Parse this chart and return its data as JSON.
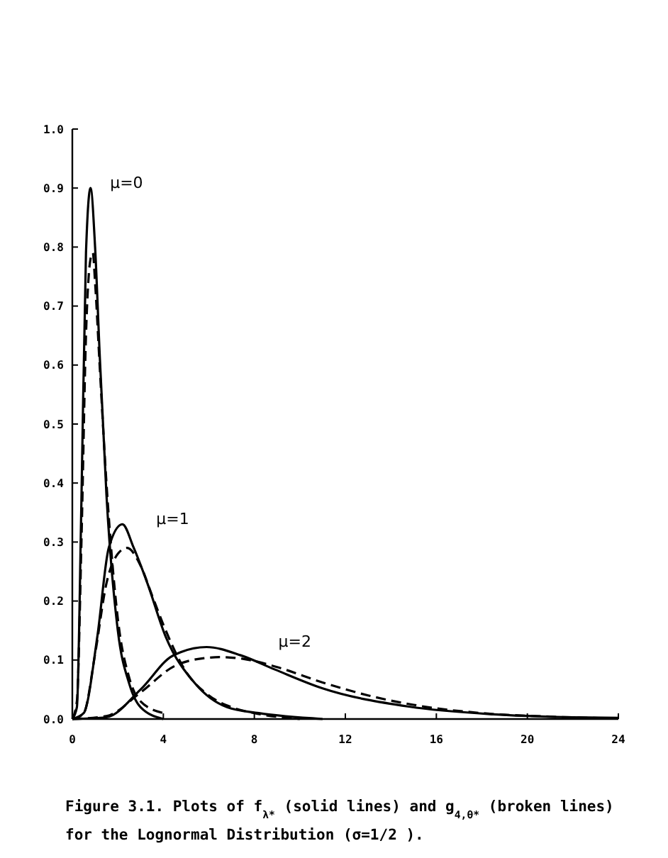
{
  "chart_data": {
    "type": "line",
    "xlim": [
      0,
      24
    ],
    "ylim": [
      0,
      1
    ],
    "xticks": [
      0,
      4,
      8,
      12,
      16,
      20,
      24
    ],
    "yticks": [
      {
        "value": 0,
        "label": "0.0"
      },
      {
        "value": 0.1,
        "label": "0.1"
      },
      {
        "value": 0.2,
        "label": "0.2"
      },
      {
        "value": 0.3,
        "label": "0.3"
      },
      {
        "value": 0.4,
        "label": "0.4"
      },
      {
        "value": 0.5,
        "label": "0.5"
      },
      {
        "value": 0.6,
        "label": "0.6"
      },
      {
        "value": 0.7,
        "label": "0.7"
      },
      {
        "value": 0.8,
        "label": "0.8"
      },
      {
        "value": 0.9,
        "label": "0.9"
      },
      {
        "value": 1,
        "label": "1.0"
      }
    ],
    "grid": false,
    "marker": "none",
    "series": [
      {
        "color": "#000000",
        "line_style": "solid",
        "x": [
          0,
          0.2,
          0.4,
          0.6,
          0.8,
          1.0,
          1.2,
          1.5,
          2,
          2.5,
          3,
          4
        ],
        "values": [
          0,
          0.02,
          0.37,
          0.79,
          0.9,
          0.8,
          0.62,
          0.38,
          0.15,
          0.06,
          0.02,
          0
        ]
      },
      {
        "color": "#000000",
        "line_style": "dashed",
        "x": [
          0,
          0.2,
          0.4,
          0.6,
          0.8,
          0.9,
          1.0,
          1.2,
          1.5,
          2,
          2.5,
          3,
          4
        ],
        "values": [
          0,
          0.03,
          0.3,
          0.65,
          0.78,
          0.79,
          0.74,
          0.6,
          0.4,
          0.17,
          0.07,
          0.03,
          0.01
        ]
      },
      {
        "color": "#000000",
        "line_style": "solid",
        "x": [
          0,
          0.5,
          1.1,
          1.6,
          2.2,
          2.7,
          3.3,
          4.1,
          5.4,
          6.8,
          8.2,
          11
        ],
        "values": [
          0,
          0.01,
          0.14,
          0.29,
          0.33,
          0.29,
          0.23,
          0.14,
          0.06,
          0.02,
          0.01,
          0
        ]
      },
      {
        "color": "#000000",
        "line_style": "dashed",
        "x": [
          0,
          0.5,
          1,
          1.5,
          2,
          2.4,
          3,
          3.5,
          4,
          5,
          6,
          7,
          8,
          10
        ],
        "values": [
          0,
          0.01,
          0.11,
          0.23,
          0.28,
          0.29,
          0.26,
          0.21,
          0.16,
          0.08,
          0.04,
          0.02,
          0.01,
          0
        ]
      },
      {
        "color": "#000000",
        "line_style": "solid",
        "x": [
          0,
          1.5,
          3,
          4.4,
          5.9,
          7.4,
          8.9,
          11,
          14.8,
          18.5,
          22,
          24
        ],
        "values": [
          0,
          0.003,
          0.05,
          0.107,
          0.122,
          0.108,
          0.084,
          0.052,
          0.021,
          0.008,
          0.003,
          0.002
        ]
      },
      {
        "color": "#000000",
        "line_style": "dashed",
        "x": [
          0,
          1.5,
          3,
          4.5,
          6,
          6.5,
          7.5,
          9,
          11,
          13,
          15,
          18,
          21,
          24
        ],
        "values": [
          0,
          0.005,
          0.045,
          0.09,
          0.104,
          0.105,
          0.102,
          0.088,
          0.062,
          0.04,
          0.024,
          0.01,
          0.004,
          0.001
        ]
      }
    ],
    "annotations": [
      "μ=0",
      "μ=1",
      "μ=2",
      "Figure 3.1. Plots of f$_{λ*}$ (solid lines) and g$_{4,θ*}$ (broken lines)",
      "for the Lognormal Distribution (σ=1/2 )."
    ]
  }
}
